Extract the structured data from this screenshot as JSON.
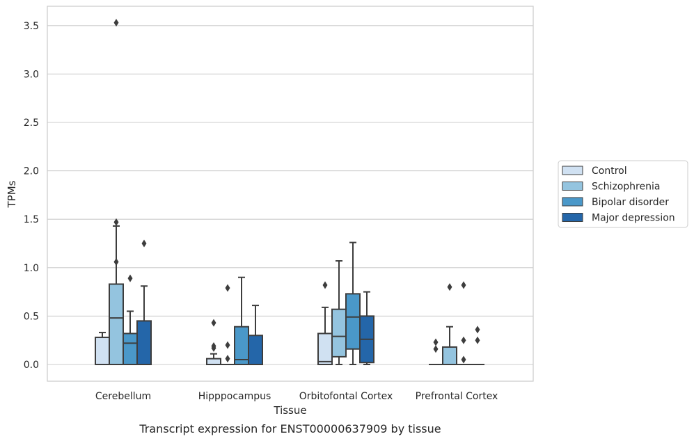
{
  "chart_data": {
    "type": "box",
    "title": "",
    "caption": "Transcript expression for ENST00000637909 by tissue",
    "xlabel": "Tissue",
    "ylabel": "TPMs",
    "ylim": [
      -0.17,
      3.72
    ],
    "yticks": [
      0.0,
      0.5,
      1.0,
      1.5,
      2.0,
      2.5,
      3.0,
      3.5
    ],
    "ytick_labels": [
      "0.0",
      "0.5",
      "1.0",
      "1.5",
      "2.0",
      "2.5",
      "3.0",
      "3.5"
    ],
    "grid": "horizontal",
    "legend_position": "right",
    "categories": [
      "Cerebellum",
      "Hipppocampus",
      "Orbitofontal Cortex",
      "Prefrontal Cortex"
    ],
    "series": [
      {
        "name": "Control",
        "color": "#d0e1f2",
        "boxes": [
          {
            "q1": 0.0,
            "median": 0.0,
            "q3": 0.28,
            "whisker_low": 0.0,
            "whisker_high": 0.33,
            "outliers": []
          },
          {
            "q1": 0.0,
            "median": 0.0,
            "q3": 0.06,
            "whisker_low": 0.0,
            "whisker_high": 0.11,
            "outliers": [
              0.17,
              0.19,
              0.43
            ]
          },
          {
            "q1": 0.0,
            "median": 0.03,
            "q3": 0.32,
            "whisker_low": 0.0,
            "whisker_high": 0.59,
            "outliers": [
              0.82
            ]
          },
          {
            "q1": 0.0,
            "median": 0.0,
            "q3": 0.0,
            "whisker_low": 0.0,
            "whisker_high": 0.0,
            "outliers": [
              0.16,
              0.23
            ]
          }
        ]
      },
      {
        "name": "Schizophrenia",
        "color": "#94c4df",
        "boxes": [
          {
            "q1": 0.0,
            "median": 0.48,
            "q3": 0.83,
            "whisker_low": 0.0,
            "whisker_high": 1.43,
            "outliers": [
              1.06,
              1.47,
              3.53
            ]
          },
          {
            "q1": 0.0,
            "median": 0.0,
            "q3": 0.0,
            "whisker_low": 0.0,
            "whisker_high": 0.0,
            "outliers": [
              0.06,
              0.2,
              0.79
            ]
          },
          {
            "q1": 0.08,
            "median": 0.29,
            "q3": 0.57,
            "whisker_low": 0.0,
            "whisker_high": 1.07,
            "outliers": []
          },
          {
            "q1": 0.0,
            "median": 0.0,
            "q3": 0.18,
            "whisker_low": 0.0,
            "whisker_high": 0.39,
            "outliers": [
              0.8
            ]
          }
        ]
      },
      {
        "name": "Bipolar disorder",
        "color": "#4a98c9",
        "boxes": [
          {
            "q1": 0.0,
            "median": 0.22,
            "q3": 0.32,
            "whisker_low": 0.0,
            "whisker_high": 0.55,
            "outliers": [
              0.89
            ]
          },
          {
            "q1": 0.0,
            "median": 0.05,
            "q3": 0.39,
            "whisker_low": 0.0,
            "whisker_high": 0.9,
            "outliers": []
          },
          {
            "q1": 0.16,
            "median": 0.49,
            "q3": 0.73,
            "whisker_low": 0.0,
            "whisker_high": 1.26,
            "outliers": []
          },
          {
            "q1": 0.0,
            "median": 0.0,
            "q3": 0.0,
            "whisker_low": 0.0,
            "whisker_high": 0.0,
            "outliers": [
              0.05,
              0.25,
              0.82
            ]
          }
        ]
      },
      {
        "name": "Major depression",
        "color": "#2466a9",
        "boxes": [
          {
            "q1": 0.0,
            "median": 0.0,
            "q3": 0.45,
            "whisker_low": 0.0,
            "whisker_high": 0.81,
            "outliers": [
              1.25
            ]
          },
          {
            "q1": 0.0,
            "median": 0.0,
            "q3": 0.3,
            "whisker_low": 0.0,
            "whisker_high": 0.61,
            "outliers": []
          },
          {
            "q1": 0.02,
            "median": 0.26,
            "q3": 0.5,
            "whisker_low": 0.0,
            "whisker_high": 0.75,
            "outliers": []
          },
          {
            "q1": 0.0,
            "median": 0.0,
            "q3": 0.0,
            "whisker_low": 0.0,
            "whisker_high": 0.0,
            "outliers": [
              0.25,
              0.36
            ]
          }
        ]
      }
    ]
  }
}
